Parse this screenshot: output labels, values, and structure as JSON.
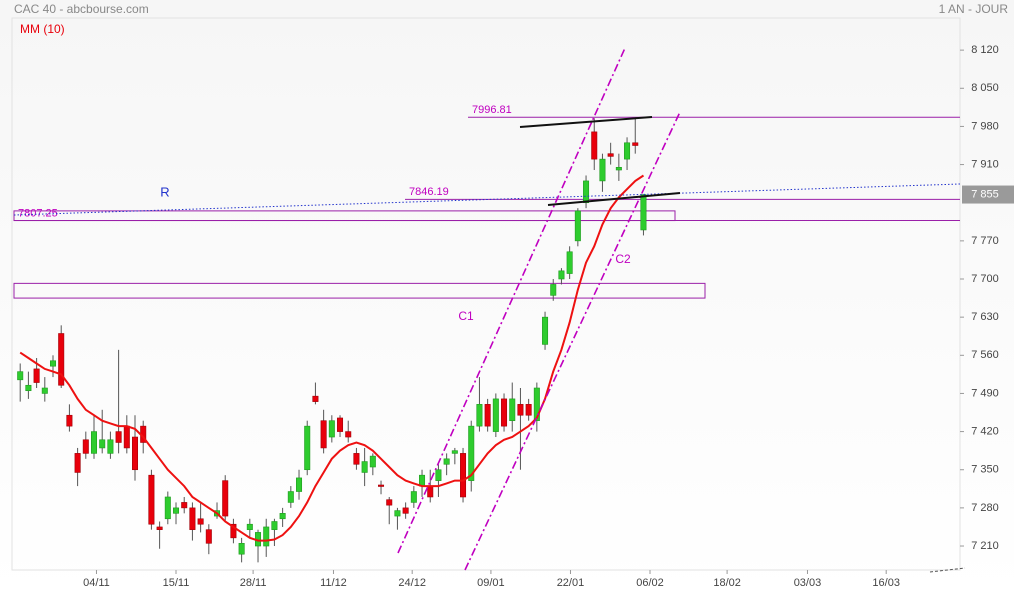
{
  "chart_data": {
    "type": "candlestick",
    "title": "CAC 40 - abcbourse.com",
    "period": "1 AN - JOUR",
    "ma_label": "MM (10)",
    "up_color": "#2ecc2e",
    "down_color": "#e8000b",
    "ma_color": "#ee1111",
    "open": [
      7515,
      7495,
      7535,
      7490,
      7540,
      7600,
      7450,
      7380,
      7405,
      7380,
      7390,
      7380,
      7420,
      7430,
      7410,
      7430,
      7340,
      7245,
      7260,
      7270,
      7290,
      7280,
      7260,
      7240,
      7265,
      7330,
      7250,
      7195,
      7240,
      7210,
      7210,
      7240,
      7260,
      7290,
      7310,
      7350,
      7485,
      7440,
      7410,
      7445,
      7420,
      7380,
      7345,
      7355,
      7322,
      7295,
      7265,
      7280,
      7290,
      7320,
      7320,
      7330,
      7360,
      7380,
      7380,
      7330,
      7430,
      7470,
      7420,
      7480,
      7440,
      7470,
      7470,
      7440,
      7580,
      7670,
      7700,
      7710,
      7770,
      7840,
      7970,
      7880,
      7930,
      7900,
      7920,
      7950,
      7790
    ],
    "high": [
      7545,
      7530,
      7555,
      7520,
      7560,
      7615,
      7470,
      7390,
      7420,
      7450,
      7460,
      7420,
      7570,
      7450,
      7450,
      7440,
      7350,
      7255,
      7310,
      7290,
      7300,
      7290,
      7290,
      7250,
      7290,
      7340,
      7260,
      7225,
      7260,
      7240,
      7260,
      7260,
      7280,
      7320,
      7350,
      7440,
      7510,
      7460,
      7450,
      7450,
      7440,
      7390,
      7390,
      7380,
      7330,
      7300,
      7280,
      7290,
      7320,
      7350,
      7350,
      7360,
      7380,
      7390,
      7390,
      7440,
      7520,
      7480,
      7490,
      7490,
      7510,
      7500,
      7480,
      7510,
      7640,
      7700,
      7720,
      7760,
      7830,
      7890,
      7995,
      7930,
      7950,
      7930,
      7960,
      7995,
      7855
    ],
    "low": [
      7475,
      7480,
      7500,
      7475,
      7520,
      7500,
      7420,
      7320,
      7370,
      7370,
      7380,
      7370,
      7380,
      7380,
      7330,
      7380,
      7240,
      7205,
      7250,
      7250,
      7270,
      7220,
      7235,
      7195,
      7260,
      7255,
      7215,
      7180,
      7225,
      7180,
      7190,
      7210,
      7245,
      7280,
      7295,
      7340,
      7470,
      7380,
      7400,
      7410,
      7400,
      7350,
      7320,
      7340,
      7305,
      7250,
      7240,
      7260,
      7280,
      7300,
      7290,
      7300,
      7340,
      7360,
      7290,
      7310,
      7420,
      7420,
      7410,
      7420,
      7420,
      7350,
      7440,
      7420,
      7570,
      7660,
      7690,
      7700,
      7760,
      7830,
      7900,
      7860,
      7910,
      7880,
      7900,
      7930,
      7780
    ],
    "close": [
      7530,
      7505,
      7510,
      7500,
      7550,
      7505,
      7430,
      7345,
      7380,
      7420,
      7405,
      7405,
      7400,
      7390,
      7350,
      7400,
      7250,
      7240,
      7300,
      7280,
      7280,
      7240,
      7250,
      7215,
      7275,
      7265,
      7225,
      7215,
      7250,
      7235,
      7245,
      7255,
      7270,
      7310,
      7335,
      7430,
      7475,
      7390,
      7440,
      7420,
      7410,
      7360,
      7365,
      7375,
      7320,
      7285,
      7275,
      7270,
      7310,
      7340,
      7300,
      7350,
      7370,
      7385,
      7300,
      7430,
      7470,
      7430,
      7480,
      7430,
      7480,
      7450,
      7450,
      7500,
      7630,
      7690,
      7715,
      7750,
      7825,
      7880,
      7920,
      7920,
      7925,
      7905,
      7950,
      7945,
      7855
    ],
    "ma": [
      7565,
      7555,
      7545,
      7535,
      7530,
      7525,
      7505,
      7480,
      7460,
      7450,
      7440,
      7435,
      7430,
      7430,
      7425,
      7410,
      7390,
      7370,
      7350,
      7335,
      7320,
      7300,
      7290,
      7280,
      7270,
      7255,
      7245,
      7235,
      7225,
      7220,
      7220,
      7222,
      7230,
      7245,
      7265,
      7290,
      7320,
      7345,
      7370,
      7385,
      7395,
      7400,
      7395,
      7385,
      7370,
      7355,
      7340,
      7330,
      7325,
      7320,
      7320,
      7320,
      7325,
      7330,
      7330,
      7340,
      7360,
      7380,
      7395,
      7405,
      7410,
      7420,
      7430,
      7445,
      7480,
      7530,
      7570,
      7620,
      7680,
      7730,
      7760,
      7800,
      7830,
      7850,
      7865,
      7880,
      7890
    ],
    "xlim": [
      -1,
      114.6
    ],
    "xticks": [
      {
        "value": 9.3,
        "label": "04/11"
      },
      {
        "value": 19,
        "label": "15/11"
      },
      {
        "value": 28.4,
        "label": "28/11"
      },
      {
        "value": 38.2,
        "label": "11/12"
      },
      {
        "value": 47.8,
        "label": "24/12"
      },
      {
        "value": 57.4,
        "label": "09/01"
      },
      {
        "value": 67.1,
        "label": "22/01"
      },
      {
        "value": 76.8,
        "label": "06/02"
      },
      {
        "value": 86.2,
        "label": "18/02"
      },
      {
        "value": 96,
        "label": "03/03"
      },
      {
        "value": 105.6,
        "label": "16/03"
      }
    ],
    "ylim": [
      7166,
      8212
    ],
    "yticks": [
      {
        "value": 7210,
        "label": "7 210"
      },
      {
        "value": 7280,
        "label": "7 280"
      },
      {
        "value": 7350,
        "label": "7 350"
      },
      {
        "value": 7420,
        "label": "7 420"
      },
      {
        "value": 7490,
        "label": "7 490"
      },
      {
        "value": 7560,
        "label": "7 560"
      },
      {
        "value": 7630,
        "label": "7 630"
      },
      {
        "value": 7700,
        "label": "7 700"
      },
      {
        "value": 7770,
        "label": "7 770"
      },
      {
        "value": 7910,
        "label": "7 910"
      },
      {
        "value": 7980,
        "label": "7 980"
      },
      {
        "value": 8050,
        "label": "8 050"
      },
      {
        "value": 8120,
        "label": "8 120"
      }
    ],
    "last_price": {
      "value": 7855,
      "label": "7 855"
    },
    "levels": [
      7996.81,
      7846.19
    ],
    "zones": [
      [
        7807.25,
        7825
      ],
      [
        7665,
        7692
      ]
    ],
    "annotations": [
      "R",
      "C1",
      "C2"
    ]
  }
}
